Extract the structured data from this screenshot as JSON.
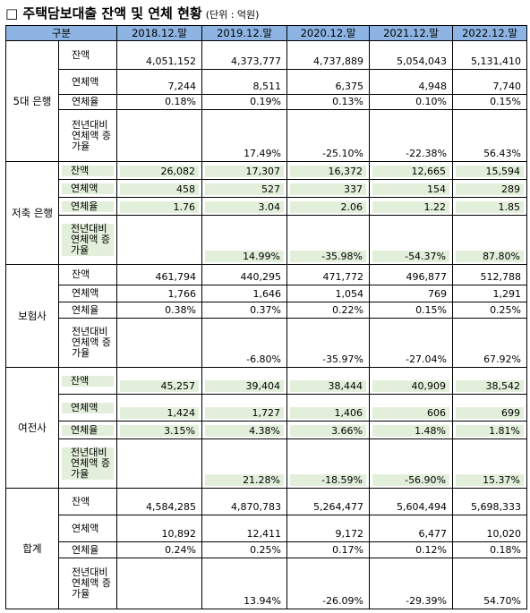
{
  "header": {
    "title": "□ 주택담보대출 잔액 및 연체 현황",
    "unit": "(단위 : 억원)"
  },
  "table": {
    "columns": [
      "구분",
      "2018.12.말",
      "2019.12.말",
      "2020.12.말",
      "2021.12.말",
      "2022.12.말"
    ],
    "groups": [
      {
        "name": "5대 은행",
        "rows": [
          {
            "label": "잔액",
            "values": [
              "4,051,152",
              "4,373,777",
              "4,737,889",
              "5,054,043",
              "5,131,410"
            ]
          },
          {
            "label": "연체액",
            "values": [
              "7,244",
              "8,511",
              "6,375",
              "4,948",
              "7,740"
            ]
          },
          {
            "label": "연체율",
            "values": [
              "0.18%",
              "0.19%",
              "0.13%",
              "0.10%",
              "0.15%"
            ]
          },
          {
            "label": "전년대비 연체액 증가율",
            "values": [
              null,
              "17.49%",
              "-25.10%",
              "-22.38%",
              "56.43%"
            ]
          }
        ]
      },
      {
        "name": "저축 은행",
        "rows": [
          {
            "label": "잔액",
            "values": [
              "26,082",
              "17,307",
              "16,372",
              "12,665",
              "15,594"
            ]
          },
          {
            "label": "연체액",
            "values": [
              "458",
              "527",
              "337",
              "154",
              "289"
            ]
          },
          {
            "label": "연체율",
            "values": [
              "1.76",
              "3.04",
              "2.06",
              "1.22",
              "1.85"
            ]
          },
          {
            "label": "전년대비 연체액 증가율",
            "values": [
              null,
              "14.99%",
              "-35.98%",
              "-54.37%",
              "87.80%"
            ]
          }
        ]
      },
      {
        "name": "보험사",
        "rows": [
          {
            "label": "잔액",
            "values": [
              "461,794",
              "440,295",
              "471,772",
              "496,877",
              "512,788"
            ]
          },
          {
            "label": "연체액",
            "values": [
              "1,766",
              "1,646",
              "1,054",
              "769",
              "1,291"
            ]
          },
          {
            "label": "연체율",
            "values": [
              "0.38%",
              "0.37%",
              "0.22%",
              "0.15%",
              "0.25%"
            ]
          },
          {
            "label": "전년대비 연체액 증가율",
            "values": [
              null,
              "-6.80%",
              "-35.97%",
              "-27.04%",
              "67.92%"
            ]
          }
        ]
      },
      {
        "name": "여전사",
        "rows": [
          {
            "label": "잔액",
            "values": [
              "45,257",
              "39,404",
              "38,444",
              "40,909",
              "38,542"
            ]
          },
          {
            "label": "연체액",
            "values": [
              "1,424",
              "1,727",
              "1,406",
              "606",
              "699"
            ]
          },
          {
            "label": "연체율",
            "values": [
              "3.15%",
              "4.38%",
              "3.66%",
              "1.48%",
              "1.81%"
            ]
          },
          {
            "label": "전년대비 연체액 증가율",
            "values": [
              null,
              "21.28%",
              "-18.59%",
              "-56.90%",
              "15.37%"
            ]
          }
        ]
      },
      {
        "name": "합계",
        "rows": [
          {
            "label": "잔액",
            "values": [
              "4,584,285",
              "4,870,783",
              "5,264,477",
              "5,604,494",
              "5,698,333"
            ]
          },
          {
            "label": "연체액",
            "values": [
              "10,892",
              "12,411",
              "9,172",
              "6,477",
              "10,020"
            ]
          },
          {
            "label": "연체율",
            "values": [
              "0.24%",
              "0.25%",
              "0.17%",
              "0.12%",
              "0.18%"
            ]
          },
          {
            "label": "전년대비 연체액 증가율",
            "values": [
              null,
              "13.94%",
              "-26.09%",
              "-29.39%",
              "54.70%"
            ]
          }
        ]
      }
    ]
  }
}
